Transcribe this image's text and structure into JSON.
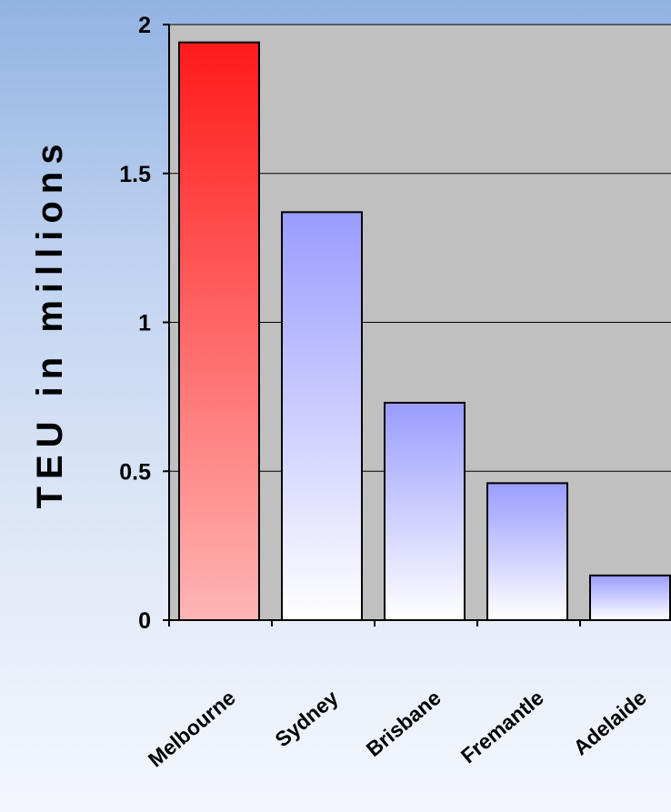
{
  "chart_data": {
    "type": "bar",
    "title": "",
    "xlabel": "",
    "ylabel": "TEU in millions",
    "categories": [
      "Melbourne",
      "Sydney",
      "Brisbane",
      "Fremantle",
      "Adelaide"
    ],
    "values": [
      1.94,
      1.37,
      0.73,
      0.46,
      0.15
    ],
    "ylim": [
      0,
      2
    ],
    "yticks": [
      "0",
      "0.5",
      "1",
      "1.5",
      "2"
    ],
    "ytick_values": [
      0,
      0.5,
      1,
      1.5,
      2
    ],
    "grid": true,
    "legend": "none",
    "colors": {
      "highlight_bar": "#ff1a1a",
      "highlight_bar_light": "#ffb5b5",
      "other_bar": "#9a9cff",
      "other_bar_light": "#ffffff",
      "plot_background": "#c0c0c0",
      "gridline": "#000000"
    }
  }
}
